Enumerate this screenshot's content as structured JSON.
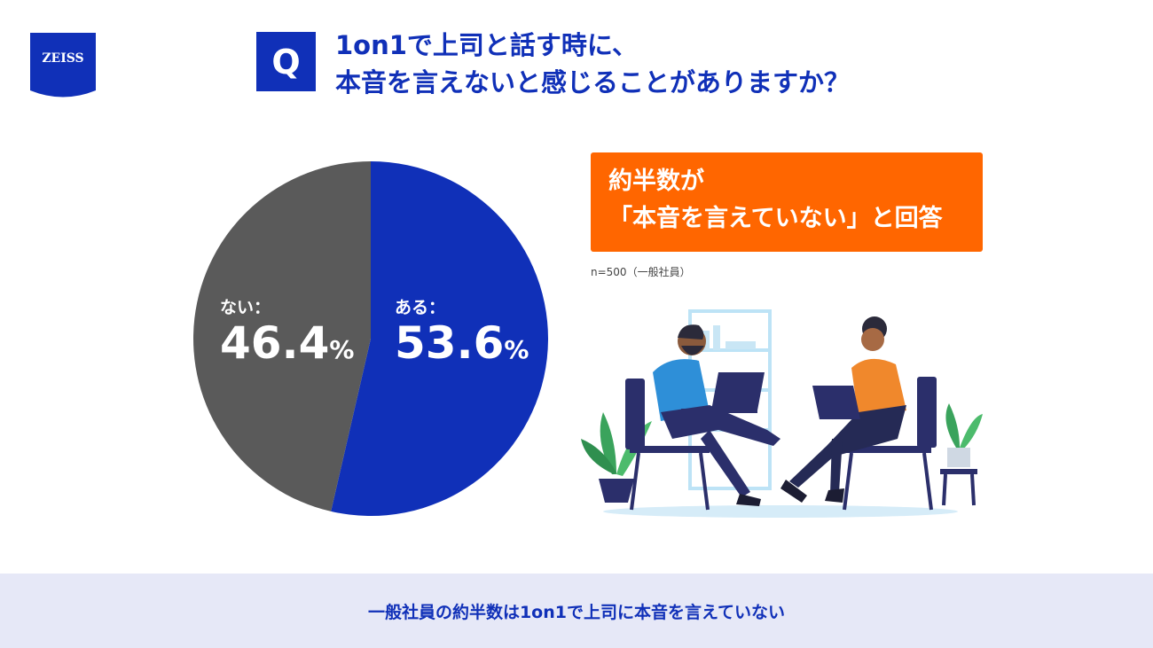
{
  "logo": {
    "text": "ZEISS"
  },
  "question": {
    "badge": "Q",
    "line1": "1on1で上司と話す時に、",
    "line2": "本音を言えないと感じることがありますか？"
  },
  "callout": {
    "line1": "約半数が",
    "line2": "「本音を言えていない」と回答"
  },
  "sample_note": "n=500（一般社員）",
  "footer": {
    "text": "一般社員の約半数は1on1で上司に本音を言えていない"
  },
  "colors": {
    "brand_blue": "#1030b8",
    "slice_no": "#5a5a5a",
    "accent_orange": "#ff6600",
    "footer_bg": "#e6e8f7"
  },
  "chart_data": {
    "type": "pie",
    "series": [
      {
        "name": "ある",
        "label": "ある：",
        "value": 53.6,
        "display": "53.6",
        "color": "#1030b8"
      },
      {
        "name": "ない",
        "label": "ない：",
        "value": 46.4,
        "display": "46.4",
        "color": "#5a5a5a"
      }
    ],
    "unit": "%"
  },
  "illustration": {
    "icon": "two-people-laptop-meeting-illustration"
  }
}
